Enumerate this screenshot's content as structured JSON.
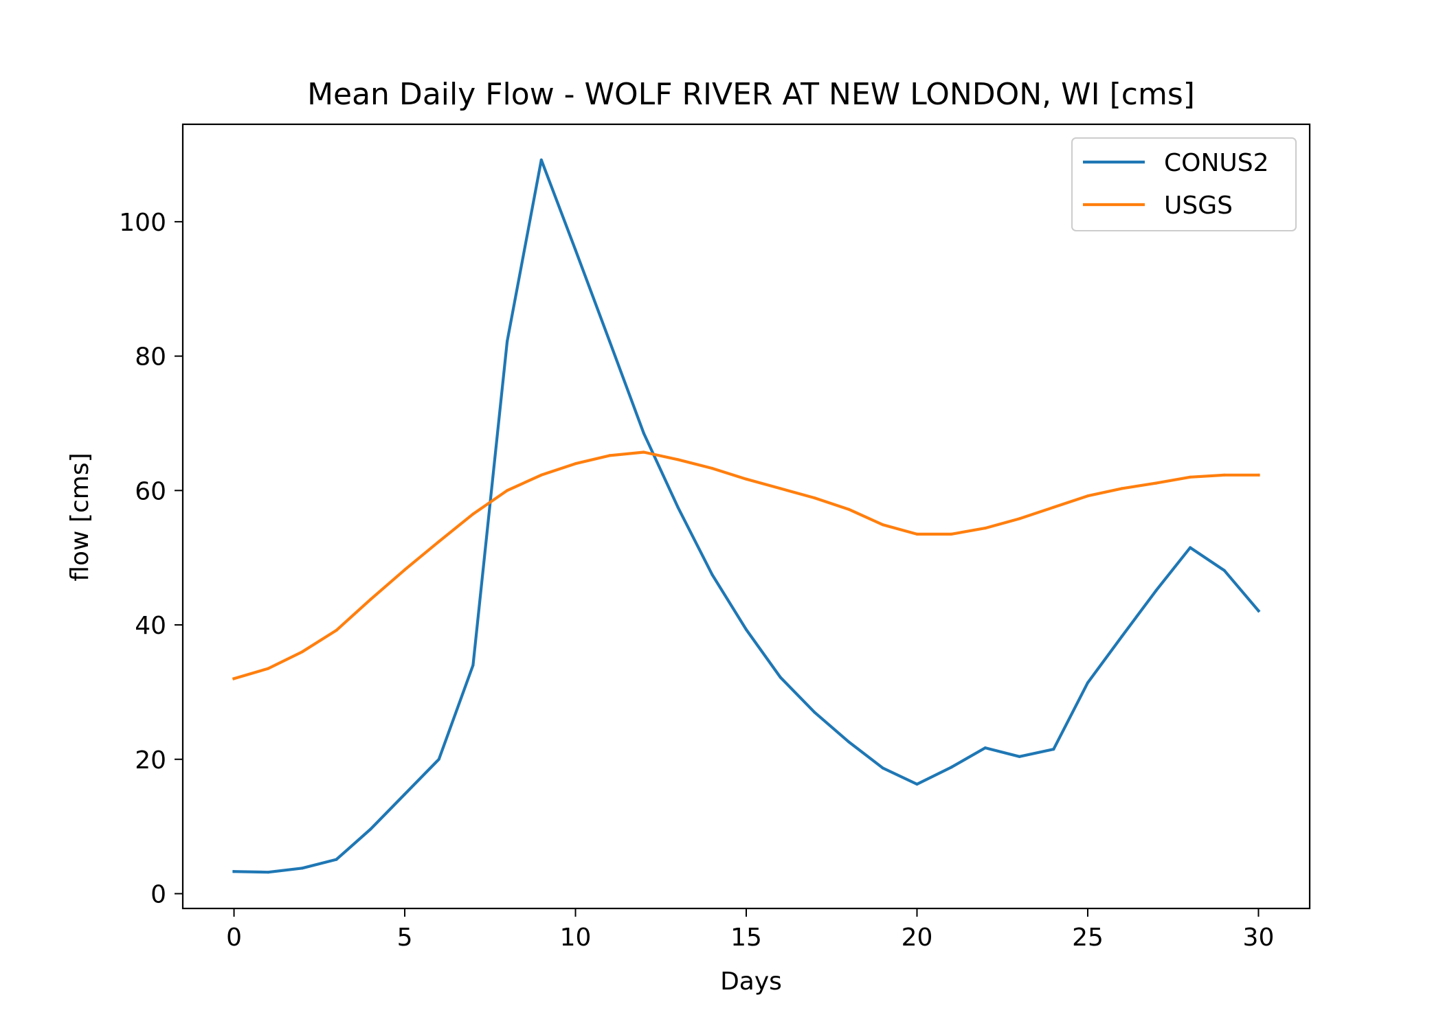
{
  "chart_data": {
    "type": "line",
    "title": "Mean Daily Flow - WOLF RIVER AT NEW LONDON, WI [cms]",
    "xlabel": "Days",
    "ylabel": "flow [cms]",
    "xlim": [
      -1.5,
      31.5
    ],
    "ylim": [
      -2.2,
      114.5
    ],
    "xticks": [
      0,
      5,
      10,
      15,
      20,
      25,
      30
    ],
    "yticks": [
      0,
      20,
      40,
      60,
      80,
      100
    ],
    "grid": false,
    "legend_position": "top-right",
    "x": [
      0,
      1,
      2,
      3,
      4,
      5,
      6,
      7,
      8,
      9,
      10,
      11,
      12,
      13,
      14,
      15,
      16,
      17,
      18,
      19,
      20,
      21,
      22,
      23,
      24,
      25,
      26,
      27,
      28,
      29,
      30
    ],
    "series": [
      {
        "name": "CONUS2",
        "color": "#1f77b4",
        "values": [
          3.3,
          3.2,
          3.8,
          5.1,
          9.6,
          14.8,
          20.0,
          34.0,
          82.2,
          109.2,
          95.8,
          82.2,
          68.5,
          57.5,
          47.5,
          39.3,
          32.2,
          27.0,
          22.6,
          18.7,
          16.3,
          18.8,
          21.7,
          20.4,
          21.5,
          31.4,
          38.3,
          45.1,
          51.5,
          48.1,
          42.1
        ]
      },
      {
        "name": "USGS",
        "color": "#ff7f0e",
        "values": [
          32.0,
          33.5,
          36.0,
          39.2,
          43.8,
          48.2,
          52.4,
          56.5,
          60.0,
          62.3,
          64.0,
          65.2,
          65.7,
          64.6,
          63.3,
          61.7,
          60.3,
          58.9,
          57.2,
          54.9,
          53.5,
          53.5,
          54.4,
          55.8,
          57.5,
          59.2,
          60.3,
          61.1,
          62.0,
          62.3,
          62.3
        ]
      }
    ]
  }
}
